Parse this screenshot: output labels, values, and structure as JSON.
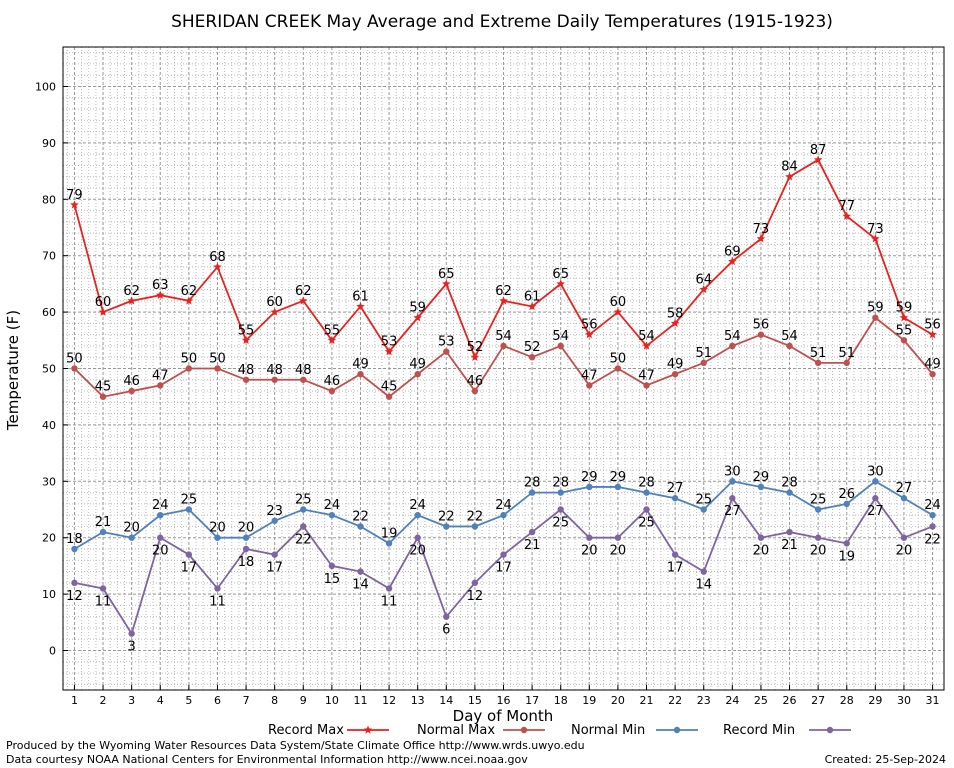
{
  "colors": {
    "record_max": "#e8221f",
    "normal_max": "#c0504d",
    "normal_min": "#4f81bd",
    "record_min": "#8064a2",
    "grid_minor": "#bbbbbb",
    "grid_major": "#999999"
  },
  "footer": {
    "produced_by": "Produced by the Wyoming Water Resources Data System/State Climate Office http://www.wrds.uwyo.edu",
    "courtesy": "Data courtesy NOAA National Centers for Environmental Information http://www.ncei.noaa.gov",
    "created": "Created:  25-Sep-2024"
  },
  "chart_data": {
    "type": "line",
    "title": "SHERIDAN CREEK May Average and Extreme Daily Temperatures (1915-1923)",
    "xlabel": "Day of Month",
    "ylabel": "Temperature (F)",
    "xlim": [
      0.6,
      31.4
    ],
    "ylim": [
      -7,
      107
    ],
    "yticks": [
      0,
      10,
      20,
      30,
      40,
      50,
      60,
      70,
      80,
      90,
      100
    ],
    "grid": true,
    "legend_position": "bottom",
    "x": [
      1,
      2,
      3,
      4,
      5,
      6,
      7,
      8,
      9,
      10,
      11,
      12,
      13,
      14,
      15,
      16,
      17,
      18,
      19,
      20,
      21,
      22,
      23,
      24,
      25,
      26,
      27,
      28,
      29,
      30,
      31
    ],
    "series": [
      {
        "name": "Record Max",
        "color_key": "record_max",
        "marker": "star",
        "label_pos": "above",
        "values": [
          79,
          60,
          62,
          63,
          62,
          68,
          55,
          60,
          62,
          55,
          61,
          53,
          59,
          65,
          52,
          62,
          61,
          65,
          56,
          60,
          54,
          58,
          64,
          69,
          73,
          84,
          87,
          77,
          73,
          59,
          56
        ]
      },
      {
        "name": "Normal Max",
        "color_key": "normal_max",
        "marker": "circle",
        "label_pos": "above",
        "values": [
          50,
          45,
          46,
          47,
          50,
          50,
          48,
          48,
          48,
          46,
          49,
          45,
          49,
          53,
          46,
          54,
          52,
          54,
          47,
          50,
          47,
          49,
          51,
          54,
          56,
          54,
          51,
          51,
          59,
          55,
          49
        ]
      },
      {
        "name": "Normal Min",
        "color_key": "normal_min",
        "marker": "circle",
        "label_pos": "above",
        "values": [
          18,
          21,
          20,
          24,
          25,
          20,
          20,
          23,
          25,
          24,
          22,
          19,
          24,
          22,
          22,
          24,
          28,
          28,
          29,
          29,
          28,
          27,
          25,
          30,
          29,
          28,
          25,
          26,
          30,
          27,
          24
        ]
      },
      {
        "name": "Record Min",
        "color_key": "record_min",
        "marker": "circle",
        "label_pos": "below",
        "values": [
          12,
          11,
          3,
          20,
          17,
          11,
          18,
          17,
          22,
          15,
          14,
          11,
          20,
          6,
          12,
          17,
          21,
          25,
          20,
          20,
          25,
          17,
          14,
          27,
          20,
          21,
          20,
          19,
          27,
          20,
          22
        ]
      }
    ]
  }
}
